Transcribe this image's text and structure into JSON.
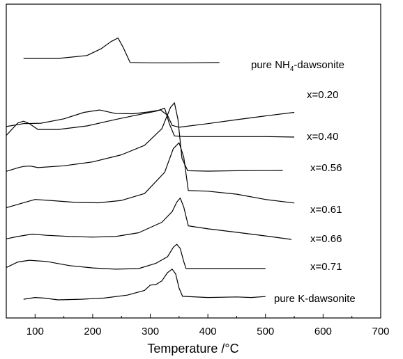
{
  "chart_data": {
    "type": "line",
    "title": "",
    "xlabel": "Temperature /°C",
    "ylabel": "",
    "xlim": [
      50,
      700
    ],
    "xticks": [
      100,
      200,
      300,
      400,
      500,
      600,
      700
    ],
    "y_ticks_shown": false,
    "grid": false,
    "legend": "none (labels printed beside each curve)",
    "line_color": "#000000",
    "series": [
      {
        "name": "pure NH4-dawsonite",
        "label_main": "pure NH",
        "label_sub": "4",
        "label_tail": "-dawsonite",
        "x": [
          80,
          140,
          190,
          215,
          232,
          244,
          253,
          265,
          300,
          360,
          420
        ],
        "y": [
          0.47,
          0.47,
          0.72,
          1.3,
          1.9,
          2.2,
          1.4,
          0.13,
          0.1,
          0.1,
          0.13
        ]
      },
      {
        "name": "x=0.20",
        "label_main": "x=0.20",
        "x": [
          50,
          80,
          110,
          150,
          185,
          212,
          240,
          270,
          296,
          318,
          330,
          338,
          350,
          400,
          450,
          500,
          550
        ],
        "y": [
          0.3,
          0.55,
          0.58,
          0.95,
          1.5,
          1.7,
          1.4,
          1.38,
          1.53,
          1.7,
          1.25,
          0.4,
          0.24,
          0.55,
          0.88,
          1.2,
          1.5
        ]
      },
      {
        "name": "x=0.40",
        "label_main": "x=0.40",
        "x": [
          50,
          70,
          80,
          90,
          105,
          140,
          190,
          240,
          280,
          310,
          325,
          333,
          342,
          360,
          420,
          500,
          550
        ],
        "y": [
          0.2,
          1.25,
          1.4,
          1.2,
          0.7,
          0.7,
          1.0,
          1.55,
          1.95,
          2.25,
          2.5,
          1.2,
          0.15,
          0.1,
          0.1,
          0.1,
          0.06
        ]
      },
      {
        "name": "x=0.56",
        "label_main": "x=0.56",
        "x": [
          50,
          70,
          80,
          92,
          105,
          150,
          200,
          250,
          290,
          320,
          335,
          342,
          348,
          355,
          365,
          400,
          450,
          530
        ],
        "y": [
          0.1,
          0.4,
          0.52,
          0.55,
          0.42,
          0.57,
          0.9,
          1.5,
          2.3,
          3.7,
          5.5,
          5.9,
          4.5,
          1.2,
          0.15,
          0.12,
          0.15,
          0.18
        ]
      },
      {
        "name": "x=0.61",
        "label_main": "x=0.61",
        "x": [
          50,
          75,
          100,
          130,
          170,
          210,
          250,
          290,
          325,
          340,
          350,
          358,
          366,
          400,
          450,
          500,
          550
        ],
        "y": [
          0.2,
          0.55,
          0.9,
          0.8,
          0.65,
          0.62,
          0.82,
          1.4,
          3.2,
          5.2,
          5.7,
          4.5,
          1.65,
          1.6,
          1.35,
          0.9,
          0.6
        ]
      },
      {
        "name": "x=0.66",
        "label_main": "x=0.66",
        "x": [
          50,
          70,
          95,
          120,
          160,
          200,
          240,
          280,
          320,
          338,
          346,
          352,
          358,
          366,
          400,
          450,
          500,
          545
        ],
        "y": [
          0.1,
          0.3,
          0.5,
          0.4,
          0.3,
          0.25,
          0.3,
          0.62,
          1.5,
          2.4,
          3.2,
          3.55,
          2.8,
          1.2,
          0.95,
          0.65,
          0.35,
          0.05
        ]
      },
      {
        "name": "x=0.71",
        "label_main": "x=0.71",
        "x": [
          50,
          70,
          90,
          120,
          160,
          200,
          240,
          280,
          310,
          330,
          340,
          346,
          352,
          358,
          362,
          400,
          450,
          500
        ],
        "y": [
          0.08,
          0.55,
          0.7,
          0.6,
          0.25,
          0.05,
          -0.05,
          0.0,
          0.45,
          1.0,
          1.8,
          2.05,
          1.7,
          0.6,
          0.0,
          0.0,
          0.0,
          0.0
        ]
      },
      {
        "name": "pure K-dawsonite",
        "label_main": "pure K-dawsonite",
        "x": [
          80,
          100,
          115,
          140,
          180,
          220,
          260,
          290,
          300,
          310,
          320,
          330,
          338,
          344,
          350,
          356,
          400,
          450,
          475,
          500
        ],
        "y": [
          0.05,
          0.2,
          0.15,
          0.0,
          0.05,
          0.15,
          0.4,
          0.8,
          1.25,
          1.3,
          1.6,
          2.3,
          2.6,
          2.2,
          1.0,
          0.3,
          0.2,
          0.25,
          0.2,
          0.28
        ]
      }
    ]
  }
}
